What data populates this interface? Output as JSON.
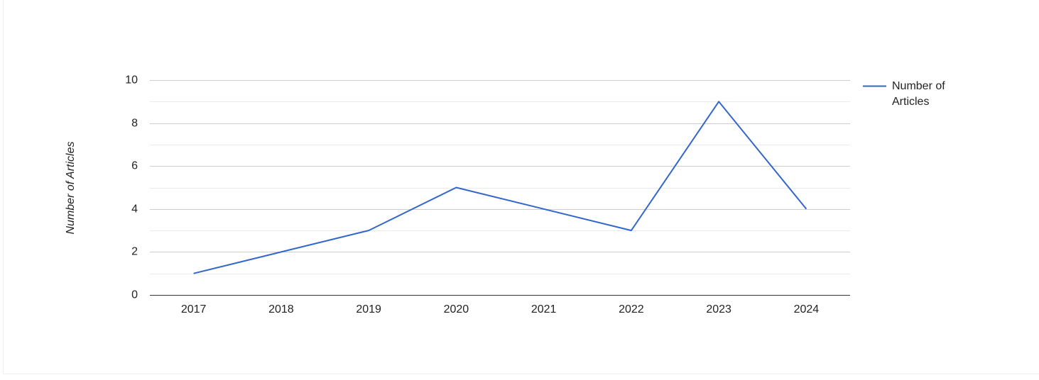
{
  "chart_data": {
    "type": "line",
    "y_label": "Number of Articles",
    "categories": [
      "2017",
      "2018",
      "2019",
      "2020",
      "2021",
      "2022",
      "2023",
      "2024"
    ],
    "series": [
      {
        "name": "Number of Articles",
        "color": "#3366cc",
        "values": [
          1,
          2,
          3,
          5,
          4,
          3,
          9,
          4
        ]
      }
    ],
    "ylim": [
      0,
      10
    ],
    "yticks": [
      0,
      2,
      4,
      6,
      8,
      10
    ],
    "minor_yticks": [
      1,
      3,
      5,
      7,
      9
    ],
    "grid": true,
    "legend": "right"
  }
}
